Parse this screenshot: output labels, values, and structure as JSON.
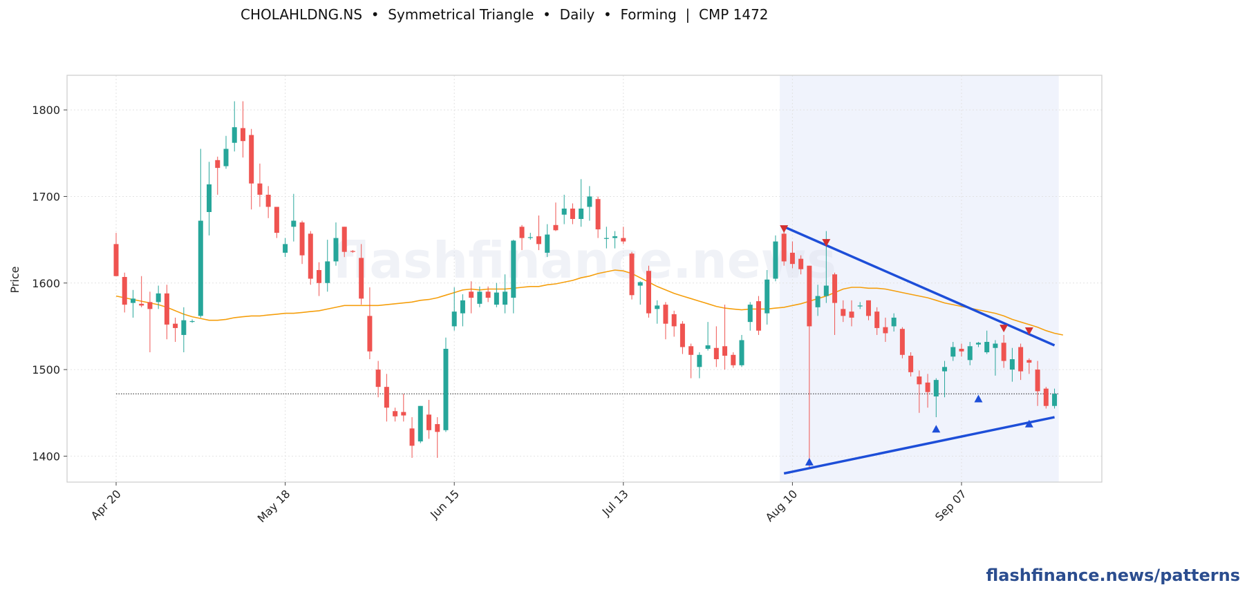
{
  "title": "CHOLAHLDNG.NS  •  Symmetrical Triangle  •  Daily  •  Forming  |  CMP 1472",
  "watermark": "flashfinance.news",
  "footer": {
    "text": "flashfinance.news/patterns",
    "color": "#2b4d8f"
  },
  "colors": {
    "up": "#26a69a",
    "down": "#ef5350",
    "ma": "#f59e0b",
    "trendline": "#1d4ed8",
    "pattern_zone": "#eef2fc",
    "marker_high": "#d32f2f",
    "marker_low": "#1d4ed8"
  },
  "chart_data": {
    "type": "candlestick",
    "ylabel": "Price",
    "ylim": [
      1370,
      1840
    ],
    "yticks": [
      1400,
      1500,
      1600,
      1700,
      1800
    ],
    "xticks": [
      {
        "i": 0,
        "label": "Apr 20"
      },
      {
        "i": 20,
        "label": "May 18"
      },
      {
        "i": 40,
        "label": "Jun 15"
      },
      {
        "i": 60,
        "label": "Jul 13"
      },
      {
        "i": 80,
        "label": "Aug 10"
      },
      {
        "i": 100,
        "label": "Sep 07"
      }
    ],
    "grid": true,
    "cmp": 1472,
    "candles": [
      [
        1645,
        1658,
        1608,
        1608
      ],
      [
        1607,
        1612,
        1566,
        1575
      ],
      [
        1577,
        1592,
        1560,
        1582
      ],
      [
        1576,
        1608,
        1572,
        1574
      ],
      [
        1578,
        1590,
        1520,
        1570
      ],
      [
        1578,
        1597,
        1570,
        1588
      ],
      [
        1588,
        1598,
        1535,
        1552
      ],
      [
        1553,
        1560,
        1532,
        1548
      ],
      [
        1540,
        1572,
        1520,
        1557
      ],
      [
        1556,
        1558,
        1554,
        1556
      ],
      [
        1562,
        1755,
        1560,
        1672
      ],
      [
        1682,
        1740,
        1655,
        1714
      ],
      [
        1742,
        1746,
        1702,
        1733
      ],
      [
        1735,
        1770,
        1732,
        1755
      ],
      [
        1762,
        1810,
        1752,
        1780
      ],
      [
        1779,
        1810,
        1745,
        1764
      ],
      [
        1771,
        1778,
        1685,
        1715
      ],
      [
        1715,
        1738,
        1688,
        1702
      ],
      [
        1702,
        1712,
        1675,
        1688
      ],
      [
        1688,
        1688,
        1652,
        1658
      ],
      [
        1635,
        1652,
        1630,
        1645
      ],
      [
        1665,
        1703,
        1648,
        1672
      ],
      [
        1670,
        1672,
        1622,
        1632
      ],
      [
        1657,
        1660,
        1598,
        1605
      ],
      [
        1615,
        1624,
        1585,
        1600
      ],
      [
        1600,
        1650,
        1590,
        1625
      ],
      [
        1625,
        1670,
        1620,
        1652
      ],
      [
        1665,
        1665,
        1630,
        1636
      ],
      [
        1637,
        1638,
        1635,
        1636
      ],
      [
        1629,
        1645,
        1575,
        1582
      ],
      [
        1562,
        1595,
        1512,
        1521
      ],
      [
        1500,
        1510,
        1468,
        1480
      ],
      [
        1480,
        1495,
        1440,
        1456
      ],
      [
        1452,
        1456,
        1440,
        1446
      ],
      [
        1451,
        1472,
        1440,
        1447
      ],
      [
        1432,
        1445,
        1398,
        1412
      ],
      [
        1417,
        1458,
        1415,
        1458
      ],
      [
        1448,
        1465,
        1420,
        1430
      ],
      [
        1437,
        1445,
        1398,
        1428
      ],
      [
        1430,
        1537,
        1428,
        1524
      ],
      [
        1550,
        1595,
        1545,
        1567
      ],
      [
        1565,
        1587,
        1550,
        1580
      ],
      [
        1590,
        1602,
        1565,
        1583
      ],
      [
        1576,
        1596,
        1572,
        1590
      ],
      [
        1590,
        1596,
        1578,
        1583
      ],
      [
        1575,
        1600,
        1572,
        1589
      ],
      [
        1575,
        1610,
        1565,
        1590
      ],
      [
        1583,
        1650,
        1565,
        1649
      ],
      [
        1665,
        1667,
        1638,
        1652
      ],
      [
        1653,
        1658,
        1650,
        1653
      ],
      [
        1654,
        1678,
        1638,
        1645
      ],
      [
        1635,
        1668,
        1630,
        1656
      ],
      [
        1667,
        1693,
        1660,
        1661
      ],
      [
        1679,
        1702,
        1668,
        1686
      ],
      [
        1686,
        1692,
        1668,
        1674
      ],
      [
        1674,
        1720,
        1665,
        1686
      ],
      [
        1688,
        1712,
        1672,
        1700
      ],
      [
        1697,
        1700,
        1652,
        1662
      ],
      [
        1651,
        1665,
        1640,
        1652
      ],
      [
        1652,
        1660,
        1640,
        1654
      ],
      [
        1652,
        1665,
        1645,
        1648
      ],
      [
        1634,
        1636,
        1581,
        1586
      ],
      [
        1597,
        1602,
        1575,
        1601
      ],
      [
        1614,
        1620,
        1560,
        1565
      ],
      [
        1570,
        1580,
        1553,
        1574
      ],
      [
        1575,
        1578,
        1535,
        1553
      ],
      [
        1564,
        1568,
        1538,
        1550
      ],
      [
        1553,
        1556,
        1518,
        1526
      ],
      [
        1527,
        1530,
        1490,
        1517
      ],
      [
        1503,
        1520,
        1490,
        1517
      ],
      [
        1524,
        1555,
        1522,
        1528
      ],
      [
        1525,
        1550,
        1503,
        1512
      ],
      [
        1527,
        1575,
        1500,
        1516
      ],
      [
        1517,
        1520,
        1502,
        1505
      ],
      [
        1505,
        1540,
        1503,
        1534
      ],
      [
        1555,
        1578,
        1545,
        1575
      ],
      [
        1579,
        1585,
        1540,
        1545
      ],
      [
        1565,
        1615,
        1552,
        1604
      ],
      [
        1605,
        1655,
        1602,
        1648
      ],
      [
        1657,
        1665,
        1620,
        1625
      ],
      [
        1635,
        1648,
        1617,
        1622
      ],
      [
        1628,
        1632,
        1610,
        1616
      ],
      [
        1620,
        1620,
        1385,
        1550
      ],
      [
        1572,
        1598,
        1562,
        1585
      ],
      [
        1585,
        1660,
        1577,
        1597
      ],
      [
        1610,
        1612,
        1540,
        1577
      ],
      [
        1570,
        1580,
        1555,
        1562
      ],
      [
        1567,
        1580,
        1550,
        1560
      ],
      [
        1573,
        1578,
        1570,
        1574
      ],
      [
        1580,
        1580,
        1557,
        1562
      ],
      [
        1567,
        1572,
        1540,
        1548
      ],
      [
        1549,
        1560,
        1532,
        1542
      ],
      [
        1550,
        1565,
        1544,
        1560
      ],
      [
        1547,
        1549,
        1513,
        1517
      ],
      [
        1516,
        1520,
        1492,
        1497
      ],
      [
        1492,
        1499,
        1450,
        1483
      ],
      [
        1485,
        1495,
        1456,
        1474
      ],
      [
        1469,
        1490,
        1445,
        1488
      ],
      [
        1498,
        1510,
        1468,
        1503
      ],
      [
        1515,
        1532,
        1510,
        1526
      ],
      [
        1524,
        1530,
        1515,
        1521
      ],
      [
        1511,
        1532,
        1505,
        1527
      ],
      [
        1529,
        1532,
        1526,
        1531
      ],
      [
        1520,
        1545,
        1518,
        1532
      ],
      [
        1525,
        1534,
        1493,
        1530
      ],
      [
        1531,
        1540,
        1502,
        1510
      ],
      [
        1500,
        1525,
        1486,
        1512
      ],
      [
        1526,
        1530,
        1488,
        1498
      ],
      [
        1511,
        1513,
        1495,
        1508
      ],
      [
        1500,
        1510,
        1458,
        1475
      ],
      [
        1478,
        1480,
        1455,
        1458
      ],
      [
        1458,
        1478,
        1455,
        1472
      ]
    ],
    "ma": [
      1585,
      1583,
      1581,
      1579,
      1577,
      1575,
      1572,
      1568,
      1564,
      1561,
      1559,
      1557,
      1557,
      1558,
      1560,
      1561,
      1562,
      1562,
      1563,
      1564,
      1565,
      1565,
      1566,
      1567,
      1568,
      1570,
      1572,
      1574,
      1574,
      1574,
      1574,
      1574,
      1575,
      1576,
      1577,
      1578,
      1580,
      1581,
      1583,
      1586,
      1589,
      1592,
      1593,
      1592,
      1593,
      1593,
      1593,
      1594,
      1595,
      1596,
      1596,
      1598,
      1599,
      1601,
      1603,
      1606,
      1608,
      1611,
      1613,
      1615,
      1614,
      1611,
      1606,
      1601,
      1596,
      1592,
      1588,
      1585,
      1582,
      1579,
      1576,
      1573,
      1571,
      1570,
      1569,
      1570,
      1570,
      1570,
      1571,
      1572,
      1574,
      1576,
      1579,
      1582,
      1585,
      1589,
      1593,
      1595,
      1595,
      1594,
      1594,
      1593,
      1591,
      1589,
      1587,
      1585,
      1583,
      1580,
      1577,
      1575,
      1573,
      1571,
      1569,
      1567,
      1565,
      1562,
      1558,
      1555,
      1552,
      1549,
      1545,
      1542,
      1540
    ],
    "pattern": {
      "name": "Symmetrical Triangle",
      "zone": [
        79,
        111
      ],
      "upper_line": {
        "from": [
          79,
          1665
        ],
        "to": [
          111,
          1528
        ]
      },
      "lower_line": {
        "from": [
          79,
          1380
        ],
        "to": [
          111,
          1445
        ]
      },
      "highs": [
        [
          79,
          1662
        ],
        [
          84,
          1646
        ],
        [
          105,
          1547
        ],
        [
          108,
          1544
        ]
      ],
      "lows": [
        [
          82,
          1394
        ],
        [
          97,
          1432
        ],
        [
          102,
          1467
        ],
        [
          108,
          1438
        ]
      ]
    }
  }
}
